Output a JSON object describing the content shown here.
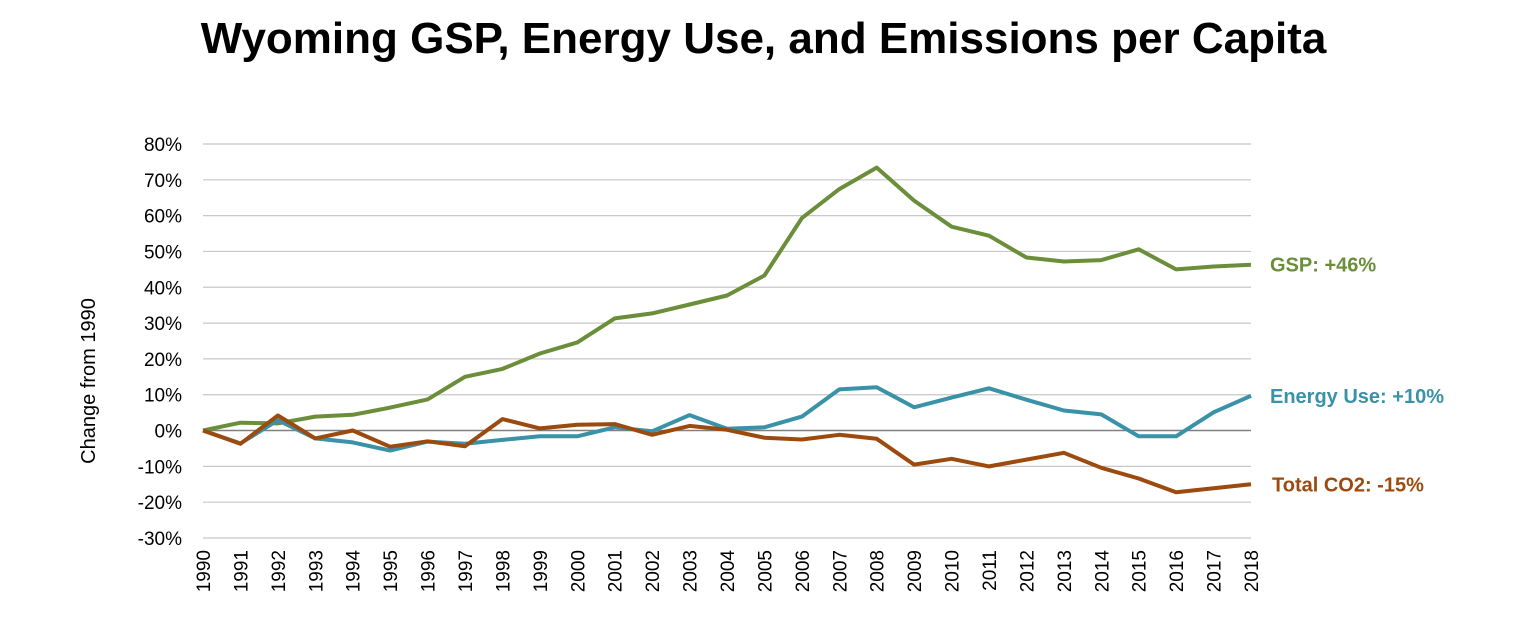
{
  "chart_data": {
    "type": "line",
    "title": "Wyoming GSP, Energy Use, and Emissions per Capita",
    "ylabel": "Change from 1990",
    "xlabel": "",
    "ylim": [
      -30,
      80
    ],
    "y_ticks": [
      "80%",
      "70%",
      "60%",
      "50%",
      "40%",
      "30%",
      "20%",
      "10%",
      "0%",
      "-10%",
      "-20%",
      "-30%"
    ],
    "y_tick_values": [
      80,
      70,
      60,
      50,
      40,
      30,
      20,
      10,
      0,
      -10,
      -20,
      -30
    ],
    "x": [
      "1990",
      "1991",
      "1992",
      "1993",
      "1994",
      "1995",
      "1996",
      "1997",
      "1998",
      "1999",
      "2000",
      "2001",
      "2002",
      "2003",
      "2004",
      "2005",
      "2006",
      "2007",
      "2008",
      "2009",
      "2010",
      "2011",
      "2012",
      "2013",
      "2014",
      "2015",
      "2016",
      "2017",
      "2018"
    ],
    "grid": true,
    "series": [
      {
        "name": "GSP",
        "end_label": "GSP: +46%",
        "color": "#6B8E3A",
        "values": [
          0,
          2.2,
          2,
          3.9,
          4.4,
          6.4,
          8.7,
          15,
          17.2,
          21.5,
          24.6,
          31.3,
          32.7,
          35.2,
          37.7,
          43.3,
          59.3,
          67.4,
          73.4,
          64.2,
          56.9,
          54.4,
          48.3,
          47.2,
          47.6,
          50.6,
          45,
          45.8,
          46.3
        ]
      },
      {
        "name": "Energy Use",
        "end_label": "Energy Use: +10%",
        "color": "#3A92A8",
        "values": [
          0,
          -3.6,
          2.9,
          -2.2,
          -3.3,
          -5.6,
          -3.1,
          -3.7,
          -2.6,
          -1.6,
          -1.6,
          0.9,
          -0.2,
          4.3,
          0.5,
          0.9,
          3.9,
          11.5,
          12.1,
          6.5,
          9.2,
          11.8,
          8.6,
          5.6,
          4.5,
          -1.6,
          -1.6,
          5.1,
          9.7
        ]
      },
      {
        "name": "Total CO2",
        "end_label": "Total CO2: -15%",
        "color": "#9C4A0E",
        "values": [
          0,
          -3.7,
          4.2,
          -2.2,
          0,
          -4.5,
          -3,
          -4.4,
          3.2,
          0.6,
          1.6,
          1.8,
          -1.2,
          1.3,
          0.2,
          -2,
          -2.5,
          -1.2,
          -2.3,
          -9.5,
          -7.9,
          -10,
          -8.1,
          -6.2,
          -10.4,
          -13.4,
          -17.2,
          -16.1,
          -15
        ]
      }
    ]
  }
}
